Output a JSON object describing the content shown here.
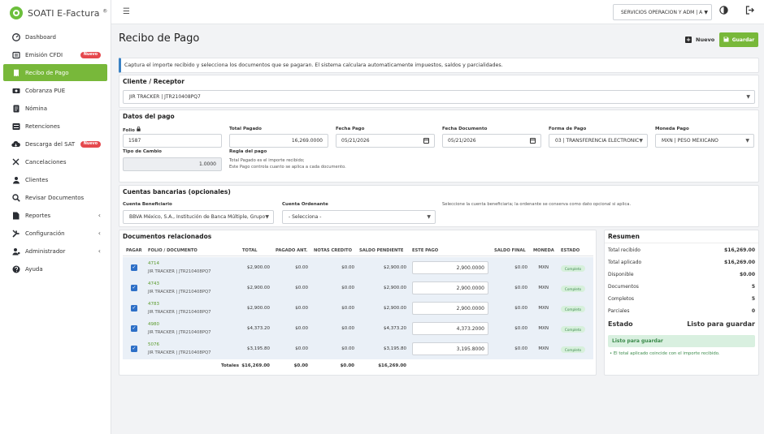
{
  "app": {
    "brand": "SOATI E-Factura",
    "brand_mark": "®"
  },
  "sidebar": {
    "items": [
      {
        "label": "Dashboard",
        "icon": "dashboard-icon"
      },
      {
        "label": "Emisión CFDI",
        "icon": "invoice-icon",
        "badge": "Nuevo"
      },
      {
        "label": "Recibo de Pago",
        "icon": "receipt-icon",
        "active": true
      },
      {
        "label": "Cobranza PUE",
        "icon": "cash-icon"
      },
      {
        "label": "Nómina",
        "icon": "payroll-icon"
      },
      {
        "label": "Retenciones",
        "icon": "list-icon"
      },
      {
        "label": "Descarga del SAT",
        "icon": "cloud-download-icon",
        "badge": "Nuevo"
      },
      {
        "label": "Cancelaciones",
        "icon": "close-icon"
      },
      {
        "label": "Clientes",
        "icon": "users-icon"
      },
      {
        "label": "Revisar Documentos",
        "icon": "search-icon"
      },
      {
        "label": "Reportes",
        "icon": "report-icon",
        "chevron": "‹"
      },
      {
        "label": "Configuración",
        "icon": "tools-icon",
        "chevron": "‹"
      },
      {
        "label": "Administrador",
        "icon": "admin-icon",
        "chevron": "‹"
      },
      {
        "label": "Ayuda",
        "icon": "help-icon"
      }
    ]
  },
  "topbar": {
    "company": "SERVICIOS OPERACION Y ADM | A"
  },
  "page": {
    "title": "Recibo de Pago",
    "nuevo_label": "Nuevo",
    "guardar_label": "Guardar",
    "info": "Captura el importe recibido y selecciona los documentos que se pagaran. El sistema calculara automaticamente impuestos, saldos y parcialidades."
  },
  "cliente": {
    "title": "Cliente / Receptor",
    "value": "JIR TRACKER | JTR210408PQ7"
  },
  "pago": {
    "title": "Datos del pago",
    "folio_label": "Folio",
    "folio": "1587",
    "total_label": "Total Pagado",
    "total": "16,269.0000",
    "fecha_pago_label": "Fecha Pago",
    "fecha_pago": "05/21/2026",
    "fecha_doc_label": "Fecha Documento",
    "fecha_doc": "05/21/2026",
    "forma_label": "Forma de Pago",
    "forma": "03 | TRANSFERENCIA ELECTRONIC...",
    "moneda_label": "Moneda Pago",
    "moneda": "MXN | PESO MEXICANO",
    "tc_label": "Tipo de Cambio",
    "tc": "1.0000",
    "regla_label": "Regla del pago",
    "regla_1": "Total Pagado es el importe recibido;",
    "regla_2": "Este Pago controla cuanto se aplica a cada documento."
  },
  "cuentas": {
    "title": "Cuentas bancarias (opcionales)",
    "benef_label": "Cuenta Beneficiario",
    "benef": "BBVA México, S.A., Institución de Banca Múltiple, Grupo ...",
    "ord_label": "Cuenta Ordenante",
    "ord": "- Selecciona -",
    "hint": "Seleccione la cuenta beneficiaria; la ordenante se conserva como dato opcional si aplica."
  },
  "docs": {
    "title": "Documentos relacionados",
    "headers": [
      "PAGAR",
      "FOLIO / DOCUMENTO",
      "TOTAL",
      "PAGADO ANT.",
      "NOTAS CREDITO",
      "SALDO PENDIENTE",
      "ESTE PAGO",
      "SALDO FINAL",
      "MONEDA",
      "ESTADO"
    ],
    "rows": [
      {
        "folio": "4714",
        "receptor": "JIR TRACKER | JTR210408PQ7",
        "total": "$2,900.00",
        "pagado": "$0.00",
        "notas": "$0.00",
        "saldo": "$2,900.00",
        "pago": "2,900.0000",
        "final": "$0.00",
        "moneda": "MXN",
        "estado": "Completo"
      },
      {
        "folio": "4743",
        "receptor": "JIR TRACKER | JTR210408PQ7",
        "total": "$2,900.00",
        "pagado": "$0.00",
        "notas": "$0.00",
        "saldo": "$2,900.00",
        "pago": "2,900.0000",
        "final": "$0.00",
        "moneda": "MXN",
        "estado": "Completo"
      },
      {
        "folio": "4783",
        "receptor": "JIR TRACKER | JTR210408PQ7",
        "total": "$2,900.00",
        "pagado": "$0.00",
        "notas": "$0.00",
        "saldo": "$2,900.00",
        "pago": "2,900.0000",
        "final": "$0.00",
        "moneda": "MXN",
        "estado": "Completo"
      },
      {
        "folio": "4980",
        "receptor": "JIR TRACKER | JTR210408PQ7",
        "total": "$4,373.20",
        "pagado": "$0.00",
        "notas": "$0.00",
        "saldo": "$4,373.20",
        "pago": "4,373.2000",
        "final": "$0.00",
        "moneda": "MXN",
        "estado": "Completo"
      },
      {
        "folio": "5076",
        "receptor": "JIR TRACKER | JTR210408PQ7",
        "total": "$3,195.80",
        "pagado": "$0.00",
        "notas": "$0.00",
        "saldo": "$3,195.80",
        "pago": "3,195.8000",
        "final": "$0.00",
        "moneda": "MXN",
        "estado": "Completo"
      }
    ],
    "totals": {
      "label": "Totales",
      "total": "$16,269.00",
      "pagado": "$0.00",
      "notas": "$0.00",
      "saldo": "$16,269.00"
    }
  },
  "resumen": {
    "title": "Resumen",
    "rows": [
      {
        "label": "Total recibido",
        "value": "$16,269.00"
      },
      {
        "label": "Total aplicado",
        "value": "$16,269.00"
      },
      {
        "label": "Disponible",
        "value": "$0.00"
      },
      {
        "label": "Documentos",
        "value": "5"
      },
      {
        "label": "Completos",
        "value": "5"
      },
      {
        "label": "Parciales",
        "value": "0"
      }
    ],
    "estado_label": "Estado",
    "estado": "Listo para guardar",
    "ok": "Listo para guardar",
    "note": "El total aplicado coincide con el importe recibido."
  },
  "colors": {
    "accent": "#78b83a",
    "danger": "#e5484d",
    "link": "#5a9a2c",
    "info": "#3b82c4"
  }
}
